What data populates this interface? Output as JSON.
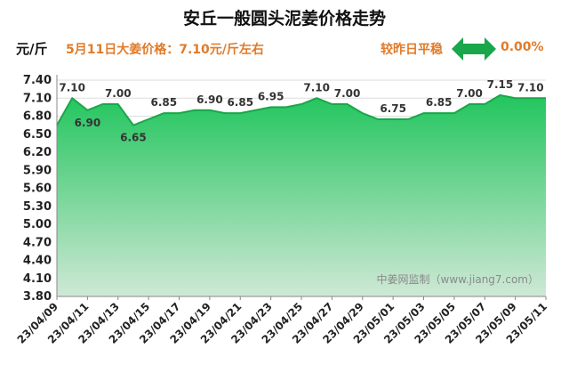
{
  "header": {
    "title": "安丘一般圆头泥姜价格走势",
    "unit": "元/斤",
    "price_note": "5月11日大姜价格：7.10元/斤左右",
    "compare_label": "较昨日平稳",
    "change_pct": "0.00%",
    "arrow_icon": "double-arrow-icon",
    "arrow_color": "#1aa64a"
  },
  "chart_data": {
    "type": "area",
    "x": [
      "23/04/09",
      "23/04/10",
      "23/04/11",
      "23/04/12",
      "23/04/13",
      "23/04/14",
      "23/04/15",
      "23/04/16",
      "23/04/17",
      "23/04/18",
      "23/04/19",
      "23/04/20",
      "23/04/21",
      "23/04/22",
      "23/04/23",
      "23/04/24",
      "23/04/25",
      "23/04/26",
      "23/04/27",
      "23/04/28",
      "23/04/29",
      "23/04/30",
      "23/05/01",
      "23/05/02",
      "23/05/03",
      "23/05/04",
      "23/05/05",
      "23/05/06",
      "23/05/07",
      "23/05/08",
      "23/05/09",
      "23/05/10",
      "23/05/11"
    ],
    "values": [
      6.65,
      7.1,
      6.9,
      7.0,
      7.0,
      6.65,
      6.75,
      6.85,
      6.85,
      6.9,
      6.9,
      6.85,
      6.85,
      6.9,
      6.95,
      6.95,
      7.0,
      7.1,
      7.0,
      7.0,
      6.85,
      6.75,
      6.75,
      6.75,
      6.85,
      6.85,
      6.85,
      7.0,
      7.0,
      7.15,
      7.1,
      7.1,
      7.1
    ],
    "data_labels": [
      {
        "index": 1,
        "text": "7.10"
      },
      {
        "index": 2,
        "text": "6.90"
      },
      {
        "index": 4,
        "text": "7.00"
      },
      {
        "index": 5,
        "text": "6.65"
      },
      {
        "index": 7,
        "text": "6.85"
      },
      {
        "index": 10,
        "text": "6.90"
      },
      {
        "index": 12,
        "text": "6.85"
      },
      {
        "index": 14,
        "text": "6.95"
      },
      {
        "index": 17,
        "text": "7.10"
      },
      {
        "index": 19,
        "text": "7.00"
      },
      {
        "index": 22,
        "text": "6.75"
      },
      {
        "index": 25,
        "text": "6.85"
      },
      {
        "index": 27,
        "text": "7.00"
      },
      {
        "index": 29,
        "text": "7.15"
      },
      {
        "index": 31,
        "text": "7.10"
      }
    ],
    "y_ticks": [
      "3.80",
      "4.10",
      "4.40",
      "4.70",
      "5.00",
      "5.30",
      "5.60",
      "5.90",
      "6.20",
      "6.50",
      "6.80",
      "7.10",
      "7.40"
    ],
    "x_ticks": [
      "23/04/09",
      "23/04/11",
      "23/04/13",
      "23/04/15",
      "23/04/17",
      "23/04/19",
      "23/04/21",
      "23/04/23",
      "23/04/25",
      "23/04/27",
      "23/04/29",
      "23/05/01",
      "23/05/03",
      "23/05/05",
      "23/05/07",
      "23/05/09",
      "23/05/11"
    ],
    "ylim": [
      3.8,
      7.4
    ],
    "grid": true,
    "line_color": "#1aa64a",
    "fill_top_color": "#22c55e",
    "fill_bottom_color": "#cfe8d6",
    "watermark": "中姜网监制（www.jiang7.com）"
  }
}
